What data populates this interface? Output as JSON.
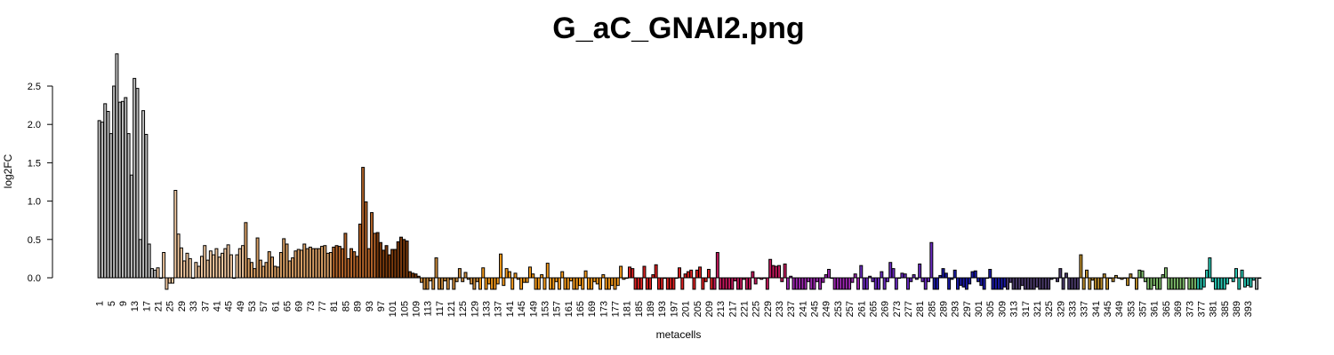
{
  "chart_data": {
    "type": "bar",
    "title": "G_aC_GNAI2.png",
    "xlabel": "metacells",
    "ylabel": "log2FC",
    "ylim": [
      -0.15,
      2.95
    ],
    "yticks": [
      0.0,
      0.5,
      1.0,
      1.5,
      2.0,
      2.5
    ],
    "ytick_labels": [
      "0.0",
      "0.5",
      "1.0",
      "1.5",
      "2.0",
      "2.5"
    ],
    "n_bars": 395,
    "xtick_labels": [
      "1",
      "5",
      "9",
      "13",
      "17",
      "21",
      "25",
      "29",
      "33",
      "37",
      "41",
      "45",
      "49",
      "53",
      "57",
      "61",
      "65",
      "69",
      "73",
      "77",
      "81",
      "85",
      "89",
      "93",
      "97",
      "101",
      "105",
      "109",
      "113",
      "117",
      "121",
      "125",
      "129",
      "133",
      "137",
      "141",
      "145",
      "149",
      "153",
      "157",
      "161",
      "165",
      "169",
      "173",
      "177",
      "181",
      "185",
      "189",
      "193",
      "197",
      "201",
      "205",
      "209",
      "213",
      "217",
      "221",
      "225",
      "229",
      "233",
      "237",
      "241",
      "245",
      "249",
      "253",
      "257",
      "261",
      "265",
      "269",
      "273",
      "277",
      "281",
      "285",
      "289",
      "293",
      "297",
      "301",
      "305",
      "309",
      "313",
      "317",
      "321",
      "325",
      "329",
      "333",
      "337",
      "341",
      "345",
      "349",
      "353",
      "357",
      "361",
      "365",
      "369",
      "373",
      "377",
      "381",
      "385",
      "389",
      "393"
    ],
    "color_groups": [
      {
        "from": 1,
        "to": 20,
        "color": "#bdbdbd"
      },
      {
        "from": 21,
        "to": 50,
        "color": "#f2c9a0"
      },
      {
        "from": 51,
        "to": 80,
        "color": "#d9a066"
      },
      {
        "from": 81,
        "to": 95,
        "color": "#b5652a"
      },
      {
        "from": 96,
        "to": 110,
        "color": "#7a3a0c"
      },
      {
        "from": 111,
        "to": 130,
        "color": "#c9893a"
      },
      {
        "from": 131,
        "to": 180,
        "color": "#f59a1b"
      },
      {
        "from": 181,
        "to": 210,
        "color": "#d92020"
      },
      {
        "from": 211,
        "to": 235,
        "color": "#c2185b"
      },
      {
        "from": 236,
        "to": 260,
        "color": "#9c27b0"
      },
      {
        "from": 261,
        "to": 285,
        "color": "#6a2bc0"
      },
      {
        "from": 286,
        "to": 310,
        "color": "#1a1aa6"
      },
      {
        "from": 311,
        "to": 335,
        "color": "#4a3a6a"
      },
      {
        "from": 336,
        "to": 355,
        "color": "#b8892a"
      },
      {
        "from": 356,
        "to": 375,
        "color": "#7dbb6a"
      },
      {
        "from": 376,
        "to": 395,
        "color": "#28c4b0"
      }
    ],
    "values": [
      2.05,
      2.03,
      2.27,
      2.17,
      1.88,
      2.5,
      2.92,
      2.29,
      2.3,
      2.35,
      1.88,
      1.34,
      2.6,
      2.47,
      0.5,
      2.18,
      1.87,
      0.44,
      0.12,
      0.1,
      0.13,
      0.0,
      0.33,
      -0.15,
      -0.07,
      -0.07,
      1.14,
      0.57,
      0.39,
      0.22,
      0.32,
      0.25,
      0.0,
      0.2,
      0.15,
      0.28,
      0.42,
      0.23,
      0.35,
      0.3,
      0.38,
      0.27,
      0.32,
      0.38,
      0.43,
      0.3,
      0.0,
      0.3,
      0.38,
      0.42,
      0.72,
      0.25,
      0.2,
      0.12,
      0.52,
      0.23,
      0.15,
      0.2,
      0.34,
      0.27,
      0.15,
      0.14,
      0.33,
      0.51,
      0.44,
      0.22,
      0.26,
      0.35,
      0.37,
      0.36,
      0.44,
      0.38,
      0.4,
      0.38,
      0.38,
      0.38,
      0.41,
      0.42,
      0.32,
      0.33,
      0.4,
      0.42,
      0.41,
      0.38,
      0.58,
      0.25,
      0.38,
      0.34,
      0.28,
      0.7,
      1.44,
      0.99,
      0.38,
      0.85,
      0.58,
      0.59,
      0.46,
      0.36,
      0.42,
      0.3,
      0.37,
      0.37,
      0.47,
      0.53,
      0.5,
      0.48,
      0.08,
      0.06,
      0.05,
      0.02,
      -0.06,
      -0.15,
      -0.15,
      -0.04,
      -0.15,
      0.26,
      -0.15,
      -0.15,
      -0.04,
      -0.15,
      -0.02,
      -0.15,
      -0.05,
      0.12,
      -0.05,
      0.07,
      -0.02,
      -0.08,
      -0.15,
      -0.05,
      -0.15,
      0.13,
      -0.15,
      -0.08,
      -0.15,
      -0.15,
      -0.08,
      0.31,
      -0.1,
      0.12,
      0.08,
      -0.15,
      0.06,
      -0.02,
      -0.15,
      -0.06,
      -0.06,
      0.14,
      0.05,
      -0.15,
      -0.15,
      0.04,
      -0.15,
      0.19,
      -0.15,
      -0.15,
      -0.05,
      -0.15,
      0.08,
      -0.15,
      -0.15,
      -0.04,
      -0.15,
      -0.15,
      -0.1,
      -0.15,
      0.09,
      -0.15,
      -0.15,
      -0.05,
      -0.08,
      -0.15,
      0.04,
      -0.15,
      -0.15,
      -0.1,
      -0.15,
      -0.1,
      0.15,
      -0.02,
      0.0,
      0.14,
      0.12,
      -0.15,
      -0.15,
      -0.15,
      0.15,
      -0.15,
      -0.15,
      0.04,
      0.17,
      -0.15,
      -0.15,
      0.0,
      -0.15,
      -0.15,
      -0.15,
      0.0,
      0.13,
      -0.15,
      0.05,
      0.08,
      0.1,
      -0.15,
      0.1,
      0.14,
      -0.15,
      -0.05,
      0.11,
      -0.15,
      -0.15,
      0.33,
      -0.15,
      -0.15,
      -0.15,
      -0.15,
      -0.15,
      -0.04,
      -0.15,
      -0.15,
      -0.02,
      -0.15,
      -0.15,
      0.08,
      -0.08,
      0.0,
      -0.02,
      0.0,
      -0.15,
      0.24,
      0.16,
      0.15,
      0.16,
      -0.05,
      0.18,
      -0.15,
      0.02,
      -0.15,
      -0.15,
      -0.15,
      -0.15,
      -0.15,
      -0.05,
      -0.15,
      -0.15,
      -0.05,
      -0.15,
      -0.06,
      0.04,
      0.11,
      0.0,
      -0.15,
      -0.15,
      -0.15,
      -0.15,
      -0.15,
      -0.15,
      -0.06,
      0.05,
      -0.15,
      0.16,
      -0.15,
      -0.15,
      0.02,
      -0.05,
      -0.15,
      -0.15,
      0.08,
      -0.15,
      -0.05,
      0.2,
      0.12,
      -0.15,
      0.0,
      0.06,
      0.05,
      -0.15,
      -0.05,
      0.04,
      -0.02,
      0.18,
      -0.05,
      -0.15,
      -0.05,
      0.46,
      -0.15,
      -0.15,
      0.03,
      0.12,
      0.06,
      -0.15,
      -0.02,
      0.1,
      -0.15,
      -0.1,
      -0.12,
      -0.15,
      -0.08,
      0.08,
      0.09,
      -0.05,
      -0.1,
      -0.15,
      0.0,
      0.11,
      -0.15,
      -0.15,
      -0.15,
      -0.15,
      -0.12,
      -0.15,
      -0.06,
      -0.15,
      -0.15,
      -0.15,
      -0.1,
      -0.15,
      -0.15,
      -0.15,
      -0.15,
      -0.12,
      -0.15,
      -0.15,
      -0.15,
      -0.15,
      -0.02,
      0.0,
      -0.05,
      0.12,
      -0.15,
      0.06,
      -0.15,
      -0.15,
      -0.15,
      -0.15,
      0.3,
      -0.15,
      0.1,
      -0.15,
      -0.03,
      -0.15,
      -0.15,
      -0.15,
      0.05,
      -0.15,
      0.0,
      -0.05,
      0.03,
      0.0,
      -0.02,
      0.0,
      -0.1,
      0.05,
      0.0,
      -0.15,
      0.1,
      0.09,
      -0.05,
      -0.15,
      -0.15,
      -0.1,
      -0.15,
      -0.15,
      0.04,
      0.13,
      -0.15,
      -0.15,
      -0.15,
      -0.15,
      -0.15,
      -0.15,
      0.0,
      -0.15,
      -0.15,
      -0.15,
      -0.15,
      -0.15,
      -0.12,
      0.1,
      0.26,
      -0.05,
      -0.15,
      -0.15,
      -0.15,
      -0.15,
      -0.08,
      0.0,
      -0.05,
      0.12,
      -0.15,
      0.1,
      -0.12,
      -0.1,
      -0.12,
      -0.03,
      -0.15,
      0.0
    ]
  }
}
